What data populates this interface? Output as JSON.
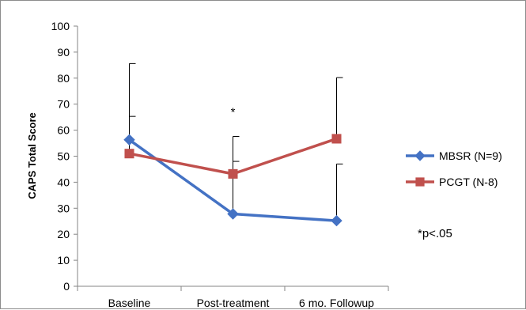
{
  "chart_data": {
    "type": "line",
    "title": "",
    "xlabel": "",
    "ylabel": "CAPS Total Score",
    "ylim": [
      0,
      100
    ],
    "yticks": [
      0,
      10,
      20,
      30,
      40,
      50,
      60,
      70,
      80,
      90,
      100
    ],
    "categories": [
      "Baseline",
      "Post-treatment",
      "6 mo. Followup"
    ],
    "grid": false,
    "legend_position": "right",
    "series": [
      {
        "name": "MBSR (N=9)",
        "color": "#4472C4",
        "marker": "diamond",
        "values": [
          56.3,
          27.8,
          25.2
        ],
        "error_upper": [
          85.6,
          48.0,
          47.0
        ]
      },
      {
        "name": "PCGT (N-8)",
        "color": "#C0504D",
        "marker": "square",
        "values": [
          51.0,
          43.2,
          56.7
        ],
        "error_upper": [
          65.3,
          57.6,
          80.2
        ]
      }
    ],
    "annotations": [
      {
        "text": "*",
        "category_index": 1,
        "y": 67
      }
    ],
    "note": "*p<.05"
  }
}
